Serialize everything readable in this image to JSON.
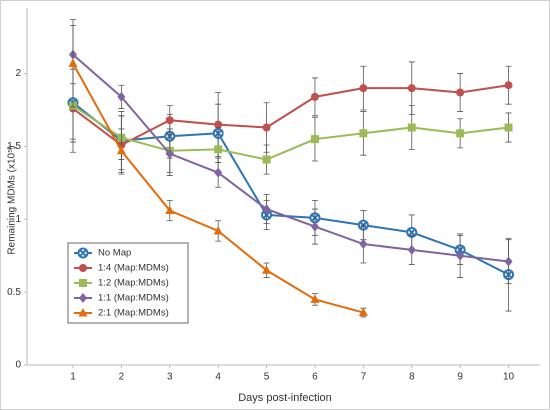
{
  "chart_data": {
    "type": "line",
    "ylabel": "Remaining MDMs (x10⁵)",
    "xlabel": "Days post-infection",
    "x": [
      1,
      2,
      3,
      4,
      5,
      6,
      7,
      8,
      9,
      10
    ],
    "xlim": [
      0.05,
      10.65
    ],
    "xticks": [
      1,
      2,
      3,
      4,
      5,
      6,
      7,
      8,
      9,
      10
    ],
    "ylim": [
      0,
      2.45
    ],
    "yticks": [
      0,
      0.5,
      1,
      1.5,
      2
    ],
    "legend": "lower left",
    "series": [
      {
        "name": "No Map",
        "color": "#2e75b6",
        "marker": "xcircle",
        "values": [
          1.8,
          1.54,
          1.57,
          1.59,
          1.03,
          1.01,
          0.96,
          0.91,
          0.79,
          0.62
        ],
        "errors": [
          0.25,
          0.2,
          0.15,
          0.2,
          0.1,
          0.12,
          0.1,
          0.12,
          0.1,
          0.25
        ]
      },
      {
        "name": "1:4 (Map:MDMs)",
        "color": "#c0504d",
        "marker": "circle",
        "values": [
          1.76,
          1.51,
          1.68,
          1.65,
          1.63,
          1.84,
          1.9,
          1.9,
          1.87,
          1.92
        ],
        "errors": [
          0.3,
          0.2,
          0.1,
          0.22,
          0.17,
          0.13,
          0.15,
          0.18,
          0.13,
          0.13
        ]
      },
      {
        "name": "1:2 (Map:MDMs)",
        "color": "#9bbb59",
        "marker": "square",
        "values": [
          1.78,
          1.56,
          1.47,
          1.48,
          1.41,
          1.55,
          1.59,
          1.63,
          1.59,
          1.63
        ],
        "errors": [
          0.25,
          0.15,
          0.15,
          0.15,
          0.1,
          0.15,
          0.15,
          0.15,
          0.1,
          0.1
        ]
      },
      {
        "name": "1:1 (Map:MDMs)",
        "color": "#8064a2",
        "marker": "diamond",
        "values": [
          2.13,
          1.84,
          1.45,
          1.32,
          1.07,
          0.95,
          0.83,
          0.79,
          0.75,
          0.71
        ],
        "errors": [
          0.2,
          0.08,
          0.15,
          0.1,
          0.1,
          0.12,
          0.13,
          0.1,
          0.15,
          0.15
        ]
      },
      {
        "name": "2:1 (Map:MDMs)",
        "color": "#e46c0a",
        "marker": "triangle",
        "values": [
          2.07,
          1.47,
          1.06,
          0.92,
          0.65,
          0.45,
          0.36,
          null,
          null,
          null
        ],
        "errors": [
          0.3,
          0.15,
          0.07,
          0.07,
          0.05,
          0.04,
          0.03,
          null,
          null,
          null
        ]
      }
    ]
  }
}
